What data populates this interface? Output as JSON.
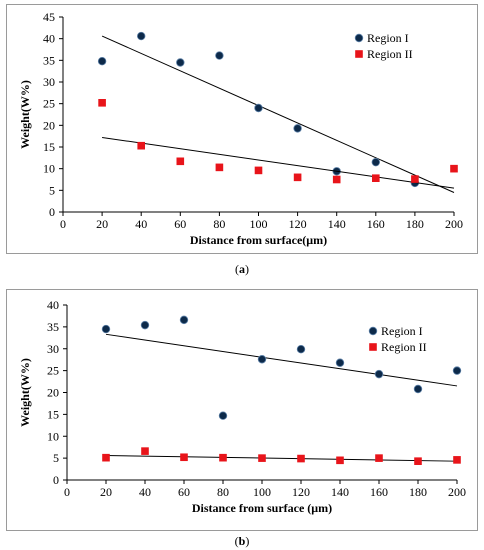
{
  "captions": {
    "a": "a",
    "b": "b"
  },
  "chart_data": [
    {
      "id": "a",
      "type": "scatter",
      "xlabel": "Distance from surface(μm)",
      "ylabel": "Weight(W%)",
      "xlim": [
        0,
        200
      ],
      "ylim": [
        0,
        45
      ],
      "xticks": [
        0,
        20,
        40,
        60,
        80,
        100,
        120,
        140,
        160,
        180,
        200
      ],
      "yticks": [
        0,
        5,
        10,
        15,
        20,
        25,
        30,
        35,
        40,
        45
      ],
      "grid": false,
      "legend_position": "top-right",
      "series": [
        {
          "name": "Region I",
          "marker": "circle",
          "color": "#0d2a4a",
          "x": [
            20,
            40,
            60,
            80,
            100,
            120,
            140,
            160,
            180
          ],
          "y": [
            34.8,
            40.6,
            34.5,
            36.1,
            24.0,
            19.3,
            9.4,
            11.5,
            6.7
          ],
          "trendline": {
            "x": [
              20,
              200
            ],
            "y": [
              40.6,
              4.5
            ]
          }
        },
        {
          "name": "Region II",
          "marker": "square",
          "color": "#e8141a",
          "x": [
            20,
            40,
            60,
            80,
            100,
            120,
            140,
            160,
            180,
            200
          ],
          "y": [
            25.2,
            15.3,
            11.7,
            10.3,
            9.6,
            8.0,
            7.5,
            7.8,
            7.6,
            10.0
          ],
          "trendline": {
            "x": [
              20,
              200
            ],
            "y": [
              17.2,
              5.5
            ]
          }
        }
      ]
    },
    {
      "id": "b",
      "type": "scatter",
      "xlabel": "Distance from surface (μm)",
      "ylabel": "Weight(W%)",
      "xlim": [
        0,
        200
      ],
      "ylim": [
        0,
        40
      ],
      "xticks": [
        0,
        20,
        40,
        60,
        80,
        100,
        120,
        140,
        160,
        180,
        200
      ],
      "yticks": [
        0,
        5,
        10,
        15,
        20,
        25,
        30,
        35,
        40
      ],
      "grid": false,
      "legend_position": "right",
      "series": [
        {
          "name": "Region I",
          "marker": "circle",
          "color": "#0d2a4a",
          "x": [
            20,
            40,
            60,
            80,
            100,
            120,
            140,
            160,
            180,
            200
          ],
          "y": [
            34.5,
            35.4,
            36.6,
            14.7,
            27.6,
            29.9,
            26.8,
            24.2,
            20.8,
            25.0
          ],
          "trendline": {
            "x": [
              20,
              200
            ],
            "y": [
              33.3,
              21.5
            ]
          }
        },
        {
          "name": "Region II",
          "marker": "square",
          "color": "#e8141a",
          "x": [
            20,
            40,
            60,
            80,
            100,
            120,
            140,
            160,
            180,
            200
          ],
          "y": [
            5.1,
            6.6,
            5.2,
            5.1,
            5.0,
            4.9,
            4.5,
            5.0,
            4.3,
            4.6
          ],
          "trendline": {
            "x": [
              20,
              200
            ],
            "y": [
              5.6,
              4.3
            ]
          }
        }
      ]
    }
  ]
}
